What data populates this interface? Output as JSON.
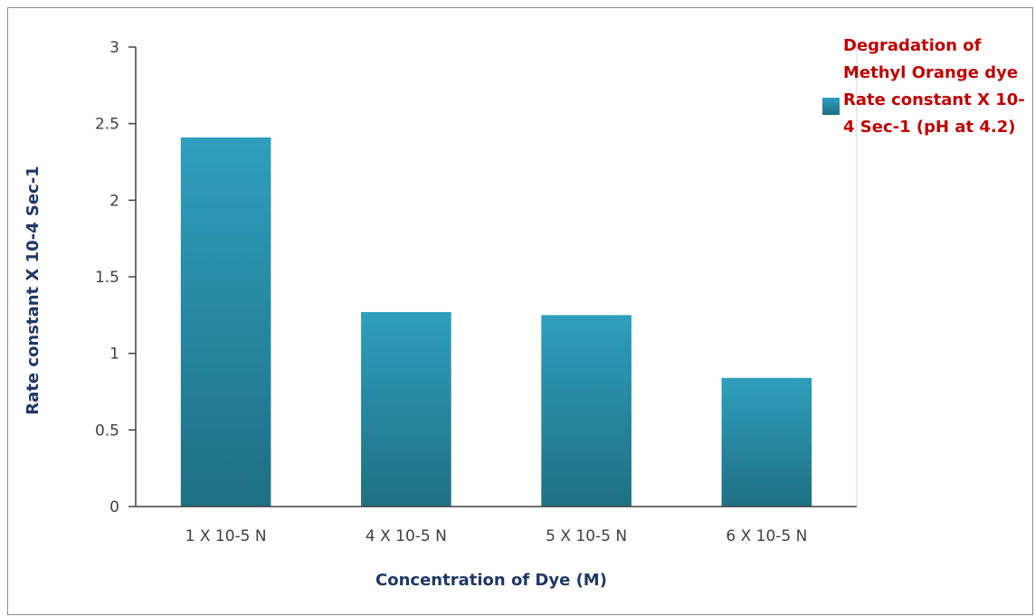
{
  "chart_data": {
    "type": "bar",
    "categories": [
      "1 X 10-5 N",
      "4 X 10-5 N",
      "5 X 10-5 N",
      "6 X 10-5 N"
    ],
    "series": [
      {
        "name": "Degradation of Methyl Orange dye Rate constant X 10-4 Sec-1 (pH at 4.2)",
        "values": [
          2.41,
          1.27,
          1.25,
          0.84
        ]
      }
    ],
    "xlabel": "Concentration of Dye (M)",
    "ylabel": "Rate constant X 10-4 Sec-1",
    "ylim": [
      0,
      3
    ],
    "yticks": [
      "0",
      "0.5",
      "1",
      "1.5",
      "2",
      "2.5",
      "3"
    ],
    "grid": false,
    "legend_position": "top-right",
    "colors": {
      "bar_top": "#2e9fbd",
      "bar_bottom": "#1f6f83",
      "legend_text": "#c00000",
      "axis_title": "#1f3864"
    }
  }
}
